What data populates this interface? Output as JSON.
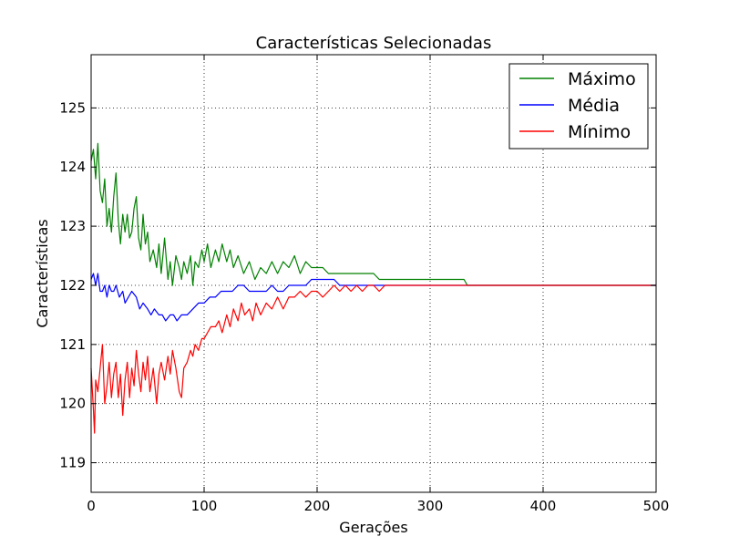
{
  "chart_data": {
    "type": "line",
    "title": "Características Selecionadas",
    "xlabel": "Gerações",
    "ylabel": "Características",
    "xlim": [
      0,
      500
    ],
    "ylim": [
      118.5,
      125.9
    ],
    "xticks": [
      0,
      100,
      200,
      300,
      400,
      500
    ],
    "yticks": [
      119,
      120,
      121,
      122,
      123,
      124,
      125
    ],
    "grid": true,
    "legend_position": "top-right",
    "series": [
      {
        "name": "Máximo",
        "color": "#008000",
        "x": [
          0,
          2,
          4,
          6,
          8,
          10,
          12,
          14,
          16,
          18,
          20,
          22,
          24,
          26,
          28,
          30,
          32,
          34,
          36,
          38,
          40,
          42,
          44,
          46,
          48,
          50,
          52,
          55,
          58,
          60,
          62,
          65,
          68,
          70,
          72,
          75,
          78,
          80,
          82,
          85,
          88,
          90,
          92,
          95,
          98,
          100,
          103,
          106,
          110,
          113,
          116,
          120,
          123,
          126,
          130,
          135,
          140,
          145,
          150,
          155,
          160,
          165,
          170,
          175,
          180,
          185,
          190,
          195,
          200,
          205,
          210,
          220,
          230,
          240,
          250,
          255,
          260,
          270,
          280,
          290,
          300,
          310,
          320,
          330,
          333,
          340,
          360,
          380,
          400,
          420,
          440,
          460,
          480,
          500
        ],
        "values": [
          124.1,
          124.3,
          123.8,
          124.4,
          123.6,
          123.4,
          123.8,
          123.0,
          123.3,
          122.9,
          123.5,
          123.9,
          123.1,
          122.7,
          123.2,
          122.9,
          123.2,
          122.8,
          122.9,
          123.3,
          123.5,
          122.8,
          122.6,
          123.2,
          122.7,
          122.9,
          122.4,
          122.6,
          122.3,
          122.7,
          122.2,
          122.8,
          122.1,
          122.4,
          122.0,
          122.5,
          122.3,
          122.1,
          122.4,
          122.2,
          122.5,
          122.0,
          122.4,
          122.3,
          122.6,
          122.4,
          122.7,
          122.3,
          122.6,
          122.4,
          122.7,
          122.4,
          122.6,
          122.3,
          122.5,
          122.2,
          122.4,
          122.1,
          122.3,
          122.2,
          122.4,
          122.2,
          122.4,
          122.3,
          122.5,
          122.2,
          122.4,
          122.3,
          122.3,
          122.3,
          122.2,
          122.2,
          122.2,
          122.2,
          122.2,
          122.1,
          122.1,
          122.1,
          122.1,
          122.1,
          122.1,
          122.1,
          122.1,
          122.1,
          122.0,
          122.0,
          122.0,
          122.0,
          122.0,
          122.0,
          122.0,
          122.0,
          122.0,
          122.0
        ]
      },
      {
        "name": "Média",
        "color": "#0000ff",
        "x": [
          0,
          2,
          4,
          6,
          8,
          10,
          12,
          14,
          16,
          18,
          20,
          22,
          25,
          28,
          30,
          33,
          36,
          40,
          43,
          46,
          50,
          53,
          56,
          60,
          63,
          66,
          70,
          73,
          76,
          80,
          85,
          90,
          95,
          100,
          105,
          110,
          115,
          120,
          125,
          130,
          135,
          140,
          145,
          150,
          155,
          160,
          165,
          170,
          175,
          180,
          185,
          190,
          195,
          200,
          205,
          210,
          215,
          220,
          225,
          230,
          240,
          250,
          260,
          270,
          280,
          290,
          300,
          310,
          320,
          330,
          340,
          360,
          380,
          400,
          420,
          440,
          460,
          480,
          500
        ],
        "values": [
          122.1,
          122.2,
          122.0,
          122.2,
          121.9,
          121.9,
          122.0,
          121.8,
          122.0,
          121.9,
          121.9,
          122.0,
          121.8,
          121.9,
          121.7,
          121.8,
          121.9,
          121.8,
          121.6,
          121.7,
          121.6,
          121.5,
          121.6,
          121.5,
          121.5,
          121.4,
          121.5,
          121.5,
          121.4,
          121.5,
          121.5,
          121.6,
          121.7,
          121.7,
          121.8,
          121.8,
          121.9,
          121.9,
          121.9,
          122.0,
          122.0,
          121.9,
          121.9,
          121.9,
          121.9,
          122.0,
          121.9,
          121.9,
          122.0,
          122.0,
          122.0,
          122.0,
          122.1,
          122.1,
          122.1,
          122.1,
          122.1,
          122.0,
          122.0,
          122.0,
          122.0,
          122.0,
          122.0,
          122.0,
          122.0,
          122.0,
          122.0,
          122.0,
          122.0,
          122.0,
          122.0,
          122.0,
          122.0,
          122.0,
          122.0,
          122.0,
          122.0,
          122.0,
          122.0
        ]
      },
      {
        "name": "Mínimo",
        "color": "#ff0000",
        "x": [
          0,
          2,
          3,
          4,
          6,
          8,
          10,
          12,
          14,
          16,
          18,
          20,
          22,
          24,
          26,
          28,
          30,
          32,
          34,
          36,
          38,
          40,
          42,
          44,
          46,
          48,
          50,
          52,
          55,
          58,
          60,
          62,
          65,
          68,
          70,
          72,
          75,
          78,
          80,
          82,
          85,
          88,
          90,
          92,
          95,
          98,
          100,
          103,
          106,
          110,
          113,
          116,
          120,
          123,
          126,
          130,
          133,
          136,
          140,
          143,
          146,
          150,
          155,
          160,
          165,
          170,
          175,
          180,
          185,
          190,
          195,
          200,
          205,
          210,
          215,
          220,
          225,
          230,
          235,
          240,
          245,
          250,
          255,
          260,
          270,
          280,
          290,
          300,
          320,
          340,
          360,
          380,
          400,
          420,
          440,
          460,
          480,
          500
        ],
        "values": [
          120.6,
          119.9,
          119.5,
          120.4,
          120.2,
          120.6,
          121.0,
          120.0,
          120.3,
          120.7,
          120.1,
          120.5,
          120.7,
          120.1,
          120.5,
          119.8,
          120.4,
          120.7,
          120.1,
          120.6,
          120.3,
          120.9,
          120.5,
          120.2,
          120.7,
          120.4,
          120.8,
          120.2,
          120.6,
          120.0,
          120.5,
          120.7,
          120.4,
          120.8,
          120.5,
          120.9,
          120.6,
          120.2,
          120.1,
          120.6,
          120.7,
          120.9,
          120.8,
          121.0,
          120.9,
          121.1,
          121.1,
          121.2,
          121.3,
          121.3,
          121.4,
          121.2,
          121.5,
          121.3,
          121.6,
          121.4,
          121.7,
          121.5,
          121.6,
          121.4,
          121.7,
          121.5,
          121.7,
          121.6,
          121.8,
          121.6,
          121.8,
          121.8,
          121.9,
          121.8,
          121.9,
          121.9,
          121.8,
          121.9,
          122.0,
          121.9,
          122.0,
          121.9,
          122.0,
          121.9,
          122.0,
          122.0,
          121.9,
          122.0,
          122.0,
          122.0,
          122.0,
          122.0,
          122.0,
          122.0,
          122.0,
          122.0,
          122.0,
          122.0,
          122.0,
          122.0,
          122.0,
          122.0
        ]
      }
    ]
  }
}
